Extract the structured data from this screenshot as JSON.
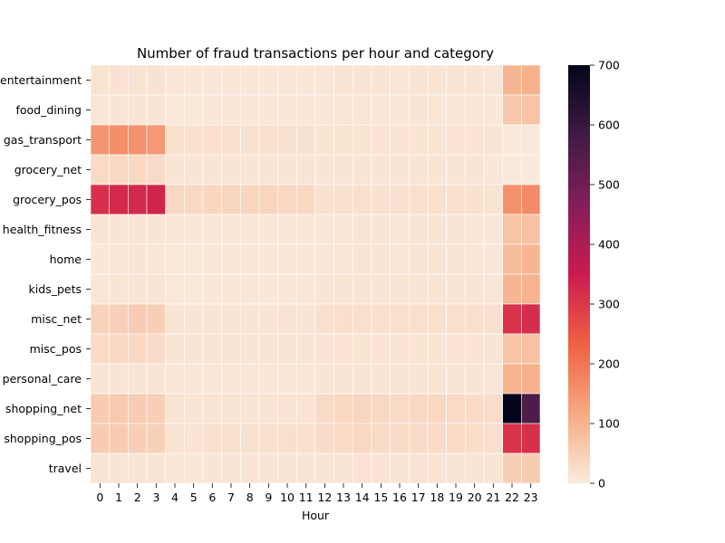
{
  "chart_data": {
    "type": "heatmap",
    "title": "Number of fraud transactions per hour and category",
    "xlabel": "Hour",
    "ylabel": "",
    "x": [
      "0",
      "1",
      "2",
      "3",
      "4",
      "5",
      "6",
      "7",
      "8",
      "9",
      "10",
      "11",
      "12",
      "13",
      "14",
      "15",
      "16",
      "17",
      "18",
      "19",
      "20",
      "21",
      "22",
      "23"
    ],
    "y": [
      "entertainment",
      "food_dining",
      "gas_transport",
      "grocery_net",
      "grocery_pos",
      "health_fitness",
      "home",
      "kids_pets",
      "misc_net",
      "misc_pos",
      "personal_care",
      "shopping_net",
      "shopping_pos",
      "travel"
    ],
    "values": [
      [
        15,
        16,
        15,
        16,
        7,
        7,
        8,
        8,
        7,
        8,
        9,
        8,
        9,
        10,
        11,
        10,
        9,
        10,
        10,
        11,
        10,
        9,
        95,
        105
      ],
      [
        9,
        10,
        10,
        10,
        6,
        6,
        7,
        7,
        7,
        7,
        8,
        7,
        8,
        8,
        9,
        9,
        8,
        10,
        9,
        9,
        9,
        8,
        65,
        70
      ],
      [
        150,
        160,
        155,
        145,
        20,
        18,
        22,
        20,
        18,
        20,
        18,
        16,
        15,
        15,
        15,
        14,
        14,
        15,
        14,
        14,
        14,
        13,
        4,
        4
      ],
      [
        30,
        32,
        32,
        28,
        10,
        10,
        12,
        11,
        12,
        12,
        12,
        11,
        10,
        10,
        10,
        10,
        10,
        10,
        10,
        10,
        10,
        8,
        3,
        3
      ],
      [
        315,
        325,
        325,
        335,
        35,
        33,
        38,
        38,
        38,
        40,
        36,
        32,
        18,
        18,
        20,
        18,
        18,
        20,
        20,
        20,
        18,
        15,
        155,
        165
      ],
      [
        10,
        11,
        10,
        11,
        7,
        7,
        8,
        8,
        8,
        8,
        8,
        7,
        9,
        9,
        10,
        10,
        9,
        10,
        10,
        10,
        9,
        8,
        70,
        75
      ],
      [
        8,
        9,
        10,
        9,
        6,
        6,
        7,
        7,
        7,
        7,
        8,
        7,
        9,
        9,
        10,
        10,
        9,
        10,
        10,
        10,
        9,
        8,
        85,
        95
      ],
      [
        9,
        10,
        10,
        10,
        6,
        6,
        7,
        7,
        7,
        7,
        8,
        7,
        10,
        10,
        11,
        11,
        10,
        11,
        10,
        10,
        10,
        9,
        95,
        100
      ],
      [
        45,
        48,
        55,
        52,
        12,
        10,
        12,
        12,
        12,
        12,
        14,
        12,
        20,
        22,
        22,
        20,
        20,
        22,
        20,
        20,
        20,
        18,
        310,
        320
      ],
      [
        30,
        32,
        32,
        30,
        10,
        10,
        12,
        12,
        12,
        12,
        12,
        11,
        14,
        14,
        15,
        14,
        14,
        15,
        14,
        14,
        14,
        12,
        70,
        75
      ],
      [
        12,
        13,
        13,
        12,
        7,
        7,
        8,
        8,
        8,
        8,
        9,
        8,
        10,
        10,
        11,
        11,
        10,
        11,
        10,
        10,
        10,
        9,
        100,
        105
      ],
      [
        55,
        58,
        55,
        52,
        12,
        10,
        12,
        12,
        12,
        12,
        14,
        14,
        30,
        35,
        38,
        35,
        30,
        32,
        32,
        30,
        28,
        25,
        700,
        560
      ],
      [
        55,
        55,
        50,
        48,
        14,
        14,
        18,
        18,
        18,
        18,
        20,
        18,
        28,
        30,
        35,
        30,
        28,
        30,
        28,
        28,
        26,
        22,
        310,
        315
      ],
      [
        12,
        13,
        12,
        12,
        8,
        8,
        10,
        10,
        10,
        10,
        11,
        10,
        12,
        12,
        14,
        14,
        12,
        14,
        12,
        12,
        12,
        11,
        50,
        55
      ]
    ],
    "vmin": 0,
    "vmax": 700,
    "colorbar_ticks": [
      0,
      100,
      200,
      300,
      400,
      500,
      600,
      700
    ],
    "colormap": [
      "#faebdd",
      "#f6aa82",
      "#f06043",
      "#cb1b4f",
      "#841e5a",
      "#3f1b44",
      "#03051a"
    ],
    "grid": true,
    "cell_border_color": "#ffffff"
  }
}
